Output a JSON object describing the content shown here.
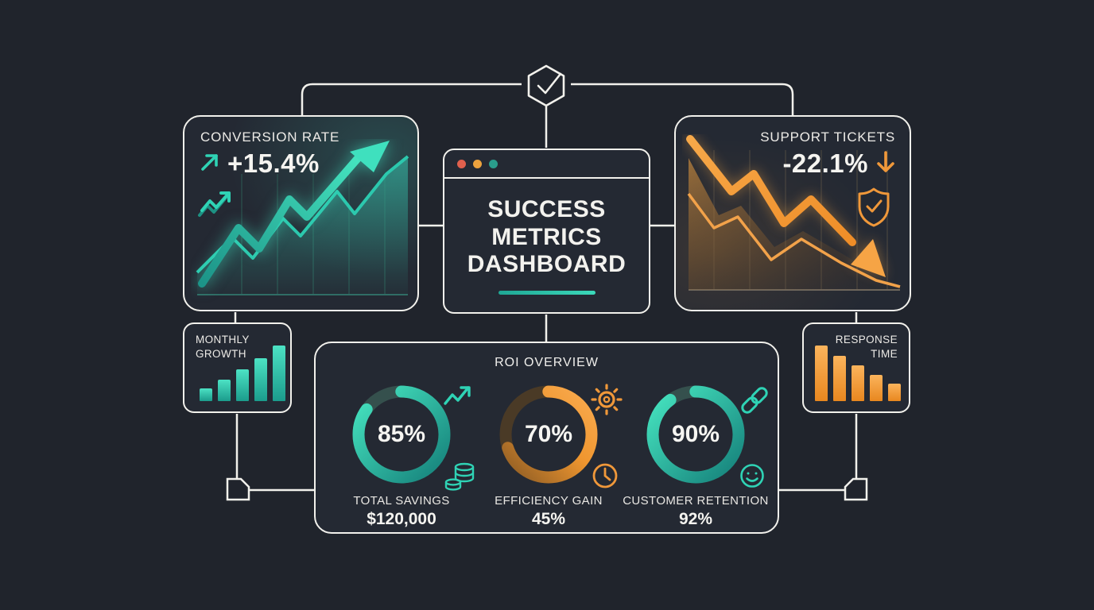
{
  "palette": {
    "background": "#20242c",
    "card_background": "#242933",
    "line_color": "#f2f1ec",
    "teal": "#3bd9ba",
    "teal_dark": "#17857c",
    "orange": "#f5a142",
    "orange_dark": "#c4741d",
    "text": "#f2f1ed"
  },
  "cards": {
    "conversion": {
      "title": "CONVERSION RATE",
      "value": "+15.4%",
      "trend": "up"
    },
    "dashboard": {
      "title_line1": "SUCCESS",
      "title_line2": "METRICS",
      "title_line3": "DASHBOARD",
      "traffic_dots": [
        "#e0604d",
        "#eca23e",
        "#2a9d8c"
      ]
    },
    "support": {
      "title": "SUPPORT TICKETS",
      "value": "-22.1%",
      "trend": "down"
    },
    "monthly_growth": {
      "title_line1": "MONTHLY",
      "title_line2": "GROWTH",
      "bars": [
        16,
        27,
        40,
        54,
        70
      ]
    },
    "response_time": {
      "title_line1": "RESPONSE",
      "title_line2": "TIME",
      "bars": [
        70,
        57,
        45,
        33,
        22
      ]
    },
    "roi": {
      "title": "ROI OVERVIEW",
      "metrics": [
        {
          "percent": 85,
          "display": "85%",
          "label": "TOTAL SAVINGS",
          "value": "$120,000",
          "theme": "teal",
          "icon_top": "trending-up-icon",
          "icon_bottom": "coins-icon"
        },
        {
          "percent": 70,
          "display": "70%",
          "label": "EFFICIENCY GAIN",
          "value": "45%",
          "theme": "orange",
          "icon_top": "gear-icon",
          "icon_bottom": "clock-icon"
        },
        {
          "percent": 90,
          "display": "90%",
          "label": "CUSTOMER RETENTION",
          "value": "92%",
          "theme": "teal",
          "icon_top": "link-icon",
          "icon_bottom": "smiley-icon"
        }
      ]
    }
  },
  "chart_data": [
    {
      "type": "line",
      "title": "Conversion rate trend",
      "trend": "up",
      "annotation": "+15.4%",
      "values": [
        20,
        45,
        32,
        58,
        47,
        75,
        62,
        88,
        98
      ]
    },
    {
      "type": "line",
      "title": "Support tickets trend",
      "trend": "down",
      "annotation": "-22.1%",
      "values": [
        95,
        60,
        66,
        40,
        50,
        34,
        18,
        8
      ]
    },
    {
      "type": "bar",
      "title": "Monthly growth",
      "values": [
        16,
        27,
        40,
        54,
        70
      ]
    },
    {
      "type": "bar",
      "title": "Response time",
      "values": [
        70,
        57,
        45,
        33,
        22
      ]
    },
    {
      "type": "donut",
      "title": "ROI overview",
      "categories": [
        "Total savings",
        "Efficiency gain",
        "Customer retention"
      ],
      "values": [
        85,
        70,
        90
      ],
      "sub_values": [
        "$120,000",
        "45%",
        "92%"
      ]
    }
  ]
}
